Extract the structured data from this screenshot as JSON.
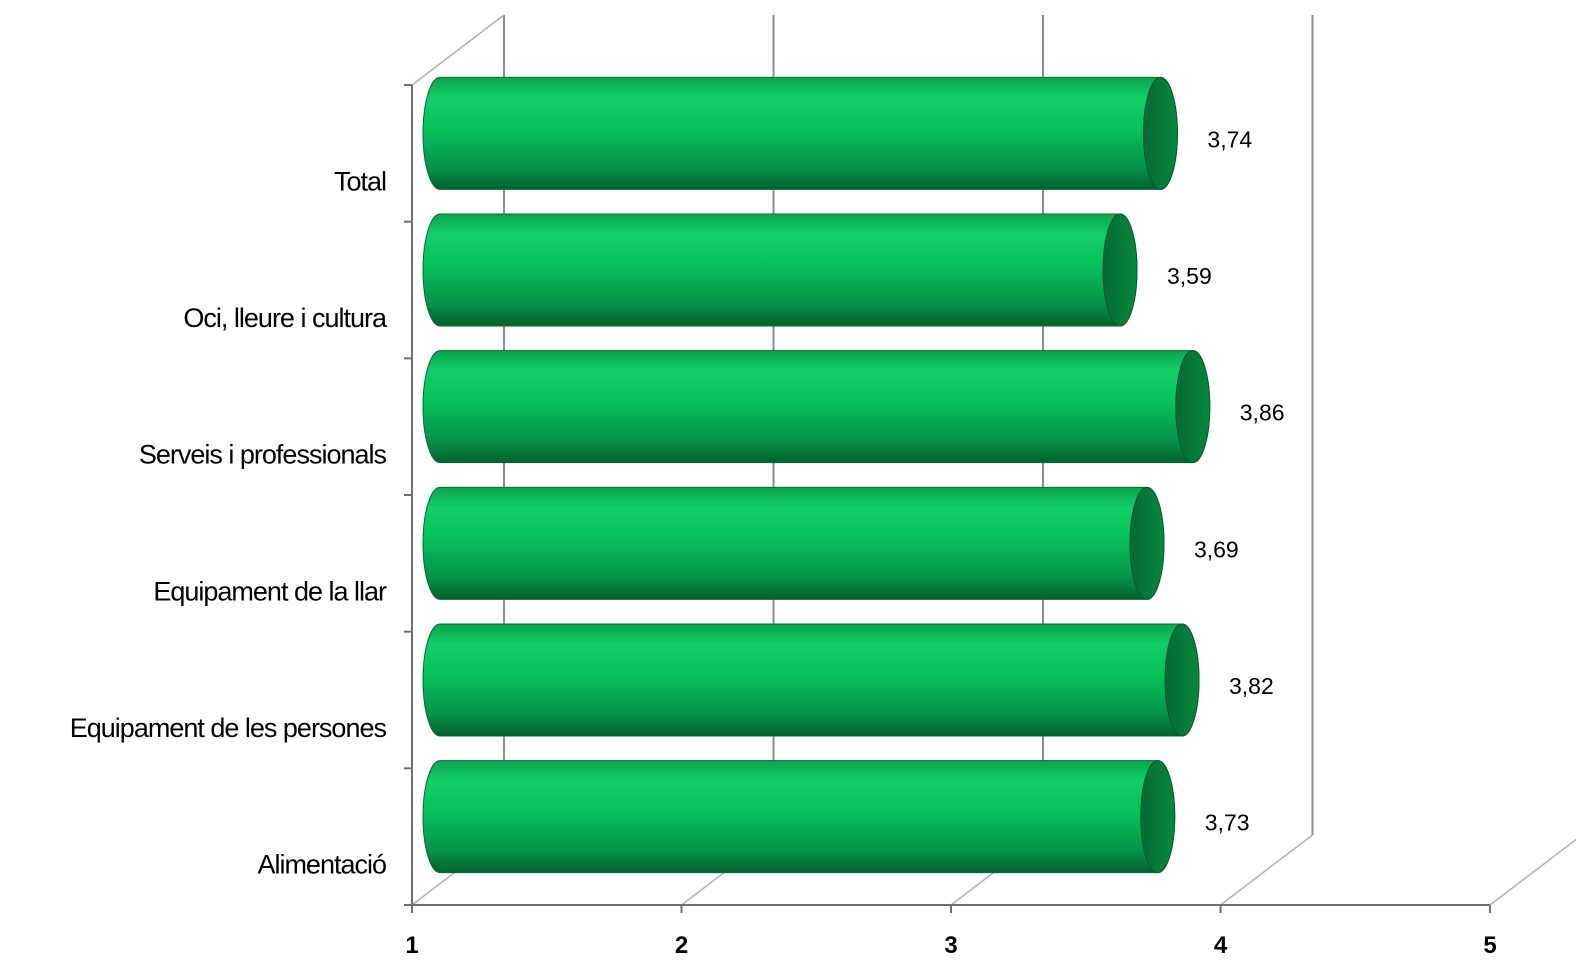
{
  "chart_data": {
    "type": "bar",
    "orientation": "horizontal",
    "style": "3d-cylinder",
    "categories": [
      "Total",
      "Oci, lleure i cultura",
      "Serveis i professionals",
      "Equipament de la llar",
      "Equipament de les persones",
      "Alimentació"
    ],
    "values": [
      3.74,
      3.59,
      3.86,
      3.69,
      3.82,
      3.73
    ],
    "value_labels": [
      "3,74",
      "3,59",
      "3,86",
      "3,69",
      "3,82",
      "3,73"
    ],
    "title": "",
    "xlabel": "",
    "ylabel": "",
    "xlim": [
      1,
      5
    ],
    "ticks": [
      1,
      2,
      3,
      4,
      5
    ],
    "tick_labels": [
      "1",
      "2",
      "3",
      "4",
      "5"
    ],
    "grid": true,
    "legend": "none",
    "colors": {
      "bar_main": "#08c25a",
      "bar_light": "#1fdc70",
      "bar_dark": "#04753a",
      "bar_cap": "#037a3a",
      "grid": "#8c8c8c",
      "axis": "#707070"
    }
  }
}
